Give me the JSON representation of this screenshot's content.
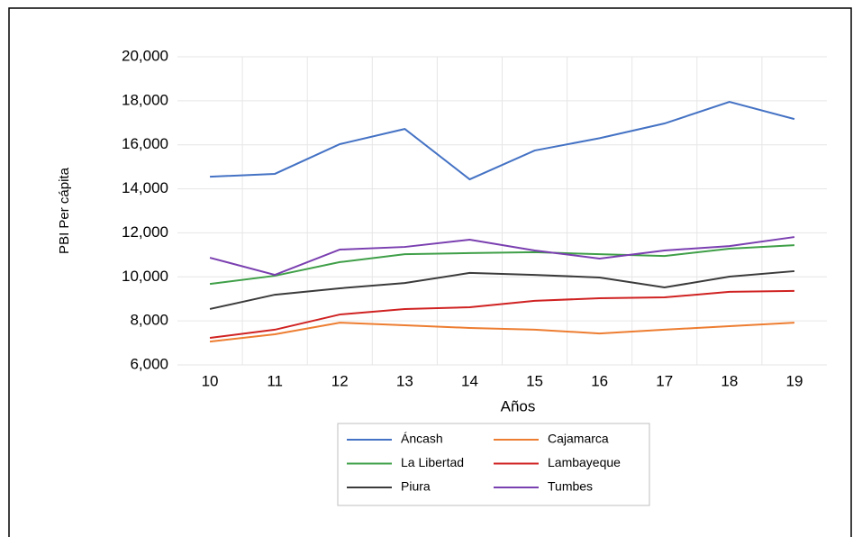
{
  "chart_data": {
    "type": "line",
    "x_label": "Años",
    "y_label": "PBI Per cápita",
    "categories": [
      "10",
      "11",
      "12",
      "13",
      "14",
      "15",
      "16",
      "17",
      "18",
      "19"
    ],
    "series": [
      {
        "name": "Áncash",
        "color": "#4472c4",
        "values": [
          14550,
          14680,
          16030,
          16720,
          14430,
          15740,
          16300,
          16970,
          17950,
          17170
        ]
      },
      {
        "name": "Cajamarca",
        "color": "#ed7d31",
        "values": [
          7060,
          7390,
          7920,
          7800,
          7680,
          7600,
          7430,
          7600,
          7760,
          7920
        ]
      },
      {
        "name": "La Libertad",
        "color": "#3f9f48",
        "values": [
          9680,
          10050,
          10670,
          11030,
          11080,
          11120,
          11030,
          10950,
          11280,
          11440
        ]
      },
      {
        "name": "Lambayeque",
        "color": "#d02222",
        "values": [
          7230,
          7600,
          8290,
          8540,
          8620,
          8910,
          9030,
          9070,
          9320,
          9360
        ]
      },
      {
        "name": "Piura",
        "color": "#3b3b3b",
        "values": [
          8540,
          9190,
          9480,
          9720,
          10180,
          10090,
          9970,
          9520,
          10010,
          10260
        ]
      },
      {
        "name": "Tumbes",
        "color": "#7a3fb0",
        "values": [
          10870,
          10090,
          11240,
          11360,
          11690,
          11200,
          10830,
          11200,
          11400,
          11810
        ]
      }
    ],
    "ylim": [
      6000,
      20000
    ],
    "yticks": [
      {
        "value": 6000,
        "label": "6,000"
      },
      {
        "value": 8000,
        "label": "8,000"
      },
      {
        "value": 10000,
        "label": "10,000"
      },
      {
        "value": 12000,
        "label": "12,000"
      },
      {
        "value": 14000,
        "label": "14,000"
      },
      {
        "value": 16000,
        "label": "16,000"
      },
      {
        "value": 18000,
        "label": "18,000"
      },
      {
        "value": 20000,
        "label": "20,000"
      }
    ],
    "grid": true
  }
}
